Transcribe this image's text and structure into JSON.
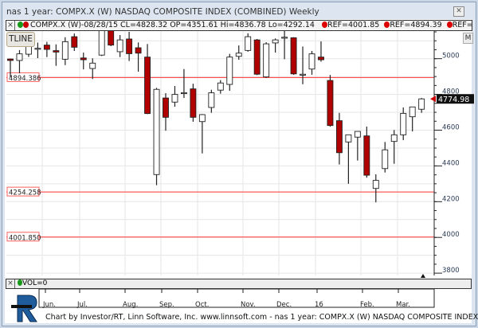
{
  "window": {
    "title": "nas 1 year: COMPX.X (W) NASDAQ COMPOSITE INDEX (COMBINED) Weekly",
    "close_icon": "close-icon"
  },
  "legend": {
    "close_label": "×",
    "text": "COMPX.X (W)-08/28/15 CL=4828.32 OP=4351.61 Hi=4836.78 Lo=4292.14",
    "refs": [
      "REF=4001.85",
      "REF=4894.39",
      "REF=4"
    ],
    "colors": {
      "up": "#1a9a1a",
      "down": "#cc0000"
    }
  },
  "buttons": {
    "tline": "TLINE",
    "m": "M"
  },
  "volume": {
    "close_label": "×",
    "label": "VOL=0"
  },
  "footer": "Chart by Investor/RT, Linn Software, Inc. www.linnsoft.com - nas 1 year: COMPX.X (W) NASDAQ COMPOSITE INDEX",
  "chart_data": {
    "type": "candlestick",
    "title": "COMPX.X (W) NASDAQ COMPOSITE INDEX",
    "ylim": [
      3800,
      5200
    ],
    "y_ticks": [
      "5000",
      "4800",
      "4600",
      "4400",
      "4200",
      "4000",
      "3800"
    ],
    "x_ticks": [
      "Jun.",
      "Jul.",
      "Aug.",
      "Sep.",
      "Oct.",
      "Nov.",
      "Dec.",
      "16",
      "Feb.",
      "Mar."
    ],
    "last_price": "4774.98",
    "ref_lines": [
      {
        "label": "4894.386",
        "value": 4894.386
      },
      {
        "label": "4254.258",
        "value": 4254.258
      },
      {
        "label": "4001.850",
        "value": 4001.85
      }
    ],
    "colors": {
      "down": "#b00000",
      "up": "#ffffff",
      "ref": "#ff3030"
    },
    "ohlc": [
      [
        4998,
        5001,
        4894,
        4990
      ],
      [
        4990,
        5048,
        4918,
        5027
      ],
      [
        5025,
        5100,
        5010,
        5075
      ],
      [
        5055,
        5090,
        5003,
        5058
      ],
      [
        5076,
        5094,
        5009,
        5052
      ],
      [
        5045,
        5080,
        4960,
        5037
      ],
      [
        4997,
        5120,
        4964,
        5095
      ],
      [
        5123,
        5141,
        5043,
        5064
      ],
      [
        5004,
        5034,
        4940,
        4994
      ],
      [
        4945,
        5002,
        4886,
        4975
      ],
      [
        5020,
        5190,
        5015,
        5172
      ],
      [
        5160,
        5190,
        5070,
        5076
      ],
      [
        5039,
        5132,
        5009,
        5105
      ],
      [
        5110,
        5150,
        4987,
        5028
      ],
      [
        5061,
        5091,
        4927,
        5031
      ],
      [
        5009,
        5082,
        4690,
        4693
      ],
      [
        4351.61,
        4836.78,
        4292.14,
        4828.32
      ],
      [
        4780,
        4807,
        4597,
        4672
      ],
      [
        4757,
        4847,
        4731,
        4800
      ],
      [
        4808,
        4942,
        4780,
        4810
      ],
      [
        4831,
        4860,
        4647,
        4672
      ],
      [
        4648,
        4690,
        4470,
        4687
      ],
      [
        4727,
        4826,
        4697,
        4809
      ],
      [
        4824,
        4880,
        4804,
        4864
      ],
      [
        4856,
        5027,
        4820,
        5009
      ],
      [
        5013,
        5074,
        4994,
        5031
      ],
      [
        5046,
        5142,
        5039,
        5123
      ],
      [
        5105,
        5110,
        4908,
        4913
      ],
      [
        4898,
        5092,
        4892,
        5083
      ],
      [
        5088,
        5113,
        5034,
        5105
      ],
      [
        5118,
        5190,
        4997,
        5120
      ],
      [
        5117,
        5120,
        4910,
        4915
      ],
      [
        4911,
        5068,
        4857,
        4913
      ],
      [
        4942,
        5043,
        4910,
        5027
      ],
      [
        5009,
        5097,
        4983,
        4994
      ],
      [
        4878,
        4909,
        4620,
        4626
      ],
      [
        4653,
        4697,
        4408,
        4474
      ],
      [
        4534,
        4574,
        4300,
        4574
      ],
      [
        4561,
        4593,
        4430,
        4593
      ],
      [
        4568,
        4620,
        4334,
        4348
      ],
      [
        4274,
        4353,
        4196,
        4319
      ],
      [
        4385,
        4534,
        4363,
        4490
      ],
      [
        4537,
        4601,
        4412,
        4574
      ],
      [
        4574,
        4727,
        4544,
        4694
      ],
      [
        4675,
        4730,
        4593,
        4730
      ],
      [
        4717,
        4780,
        4697,
        4775
      ]
    ]
  }
}
